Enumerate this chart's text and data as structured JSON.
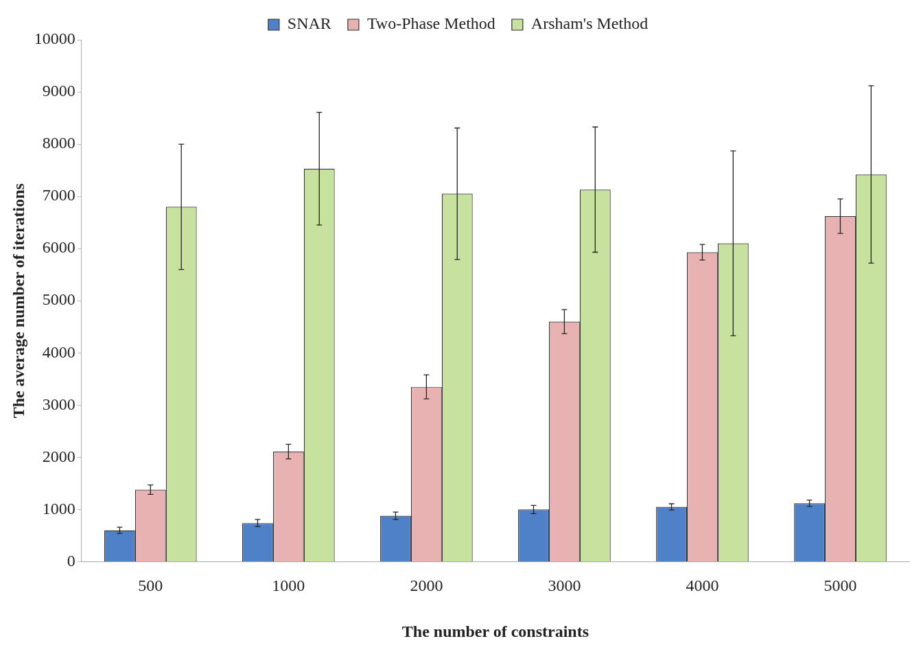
{
  "chart_data": {
    "type": "bar",
    "xlabel": "The number of constraints",
    "ylabel": "The average number of iterations",
    "categories": [
      "500",
      "1000",
      "2000",
      "3000",
      "4000",
      "5000"
    ],
    "series": [
      {
        "name": "SNAR",
        "color": "#4f81c9",
        "values": [
          600,
          740,
          880,
          1000,
          1050,
          1120
        ],
        "errors": [
          60,
          70,
          70,
          80,
          60,
          60
        ]
      },
      {
        "name": "Two-Phase Method",
        "color": "#e8b2b2",
        "values": [
          1380,
          2110,
          3350,
          4600,
          5930,
          6620
        ],
        "errors": [
          90,
          140,
          230,
          230,
          150,
          330
        ]
      },
      {
        "name": "Arsham's Method",
        "color": "#c6e29e",
        "values": [
          6800,
          7530,
          7050,
          7130,
          6100,
          7420
        ],
        "errors": [
          1200,
          1080,
          1260,
          1200,
          1770,
          1700
        ]
      }
    ],
    "ylim": [
      0,
      10000
    ],
    "yticks": [
      0,
      1000,
      2000,
      3000,
      4000,
      5000,
      6000,
      7000,
      8000,
      9000,
      10000
    ],
    "grid": false,
    "legend": "top"
  }
}
